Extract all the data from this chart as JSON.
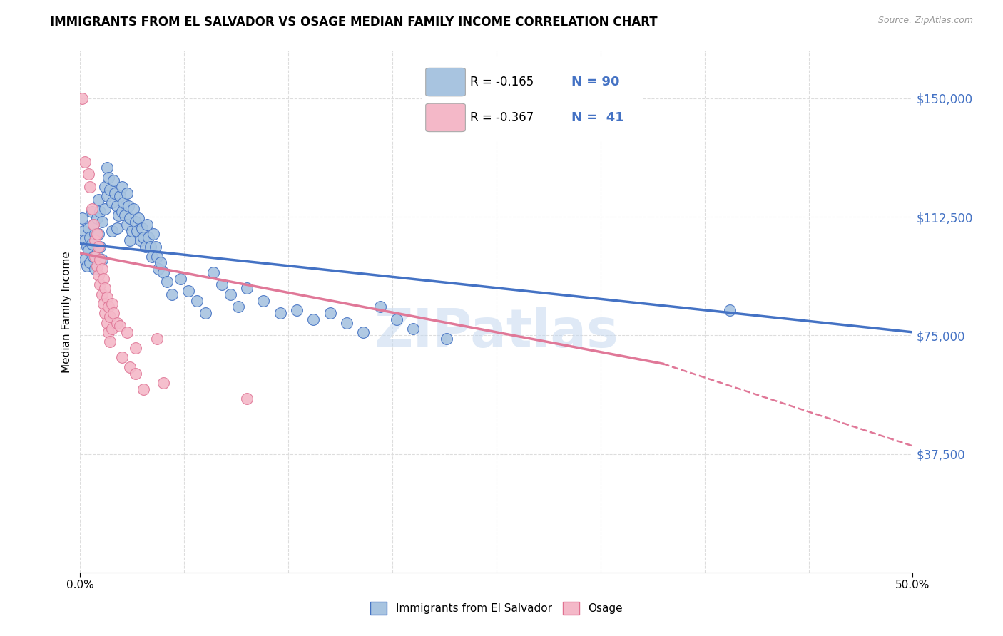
{
  "title": "IMMIGRANTS FROM EL SALVADOR VS OSAGE MEDIAN FAMILY INCOME CORRELATION CHART",
  "source": "Source: ZipAtlas.com",
  "ylabel": "Median Family Income",
  "y_tick_labels": [
    "$150,000",
    "$112,500",
    "$75,000",
    "$37,500"
  ],
  "y_tick_values": [
    150000,
    112500,
    75000,
    37500
  ],
  "x_range": [
    0.0,
    0.5
  ],
  "y_range": [
    0,
    165000
  ],
  "legend_box": {
    "R1": "-0.165",
    "N1": "90",
    "R2": "-0.367",
    "N2": "41"
  },
  "legend_bottom": [
    {
      "label": "Immigrants from El Salvador",
      "color": "#a8c4e0",
      "edge": "#4472c4"
    },
    {
      "label": "Osage",
      "color": "#f4b8c8",
      "edge": "#e07090"
    }
  ],
  "blue_scatter": [
    [
      0.001,
      112000
    ],
    [
      0.002,
      108000
    ],
    [
      0.003,
      105000
    ],
    [
      0.003,
      99000
    ],
    [
      0.004,
      103000
    ],
    [
      0.004,
      97000
    ],
    [
      0.005,
      109000
    ],
    [
      0.005,
      102000
    ],
    [
      0.006,
      106000
    ],
    [
      0.006,
      98000
    ],
    [
      0.007,
      114000
    ],
    [
      0.007,
      104000
    ],
    [
      0.008,
      110000
    ],
    [
      0.008,
      100000
    ],
    [
      0.009,
      107000
    ],
    [
      0.009,
      96000
    ],
    [
      0.01,
      112000
    ],
    [
      0.01,
      101000
    ],
    [
      0.011,
      118000
    ],
    [
      0.011,
      107000
    ],
    [
      0.012,
      114000
    ],
    [
      0.012,
      103000
    ],
    [
      0.013,
      111000
    ],
    [
      0.013,
      99000
    ],
    [
      0.015,
      122000
    ],
    [
      0.015,
      115000
    ],
    [
      0.016,
      128000
    ],
    [
      0.016,
      119000
    ],
    [
      0.017,
      125000
    ],
    [
      0.018,
      121000
    ],
    [
      0.019,
      117000
    ],
    [
      0.019,
      108000
    ],
    [
      0.02,
      124000
    ],
    [
      0.021,
      120000
    ],
    [
      0.022,
      116000
    ],
    [
      0.022,
      109000
    ],
    [
      0.023,
      113000
    ],
    [
      0.024,
      119000
    ],
    [
      0.025,
      122000
    ],
    [
      0.025,
      114000
    ],
    [
      0.026,
      117000
    ],
    [
      0.027,
      113000
    ],
    [
      0.028,
      120000
    ],
    [
      0.028,
      110000
    ],
    [
      0.029,
      116000
    ],
    [
      0.03,
      112000
    ],
    [
      0.03,
      105000
    ],
    [
      0.031,
      108000
    ],
    [
      0.032,
      115000
    ],
    [
      0.033,
      111000
    ],
    [
      0.034,
      108000
    ],
    [
      0.035,
      112000
    ],
    [
      0.036,
      105000
    ],
    [
      0.037,
      109000
    ],
    [
      0.038,
      106000
    ],
    [
      0.039,
      103000
    ],
    [
      0.04,
      110000
    ],
    [
      0.041,
      106000
    ],
    [
      0.042,
      103000
    ],
    [
      0.043,
      100000
    ],
    [
      0.044,
      107000
    ],
    [
      0.045,
      103000
    ],
    [
      0.046,
      100000
    ],
    [
      0.047,
      96000
    ],
    [
      0.048,
      98000
    ],
    [
      0.05,
      95000
    ],
    [
      0.052,
      92000
    ],
    [
      0.055,
      88000
    ],
    [
      0.06,
      93000
    ],
    [
      0.065,
      89000
    ],
    [
      0.07,
      86000
    ],
    [
      0.075,
      82000
    ],
    [
      0.08,
      95000
    ],
    [
      0.085,
      91000
    ],
    [
      0.09,
      88000
    ],
    [
      0.095,
      84000
    ],
    [
      0.1,
      90000
    ],
    [
      0.11,
      86000
    ],
    [
      0.12,
      82000
    ],
    [
      0.13,
      83000
    ],
    [
      0.14,
      80000
    ],
    [
      0.15,
      82000
    ],
    [
      0.16,
      79000
    ],
    [
      0.17,
      76000
    ],
    [
      0.18,
      84000
    ],
    [
      0.19,
      80000
    ],
    [
      0.2,
      77000
    ],
    [
      0.22,
      74000
    ],
    [
      0.39,
      83000
    ]
  ],
  "pink_scatter": [
    [
      0.001,
      150000
    ],
    [
      0.003,
      130000
    ],
    [
      0.005,
      126000
    ],
    [
      0.006,
      122000
    ],
    [
      0.007,
      115000
    ],
    [
      0.008,
      110000
    ],
    [
      0.009,
      105000
    ],
    [
      0.009,
      100000
    ],
    [
      0.01,
      107000
    ],
    [
      0.01,
      97000
    ],
    [
      0.011,
      103000
    ],
    [
      0.011,
      94000
    ],
    [
      0.012,
      99000
    ],
    [
      0.012,
      91000
    ],
    [
      0.013,
      96000
    ],
    [
      0.013,
      88000
    ],
    [
      0.014,
      93000
    ],
    [
      0.014,
      85000
    ],
    [
      0.015,
      90000
    ],
    [
      0.015,
      82000
    ],
    [
      0.016,
      87000
    ],
    [
      0.016,
      79000
    ],
    [
      0.017,
      84000
    ],
    [
      0.017,
      76000
    ],
    [
      0.018,
      81000
    ],
    [
      0.018,
      73000
    ],
    [
      0.019,
      85000
    ],
    [
      0.019,
      77000
    ],
    [
      0.02,
      82000
    ],
    [
      0.022,
      79000
    ],
    [
      0.024,
      78000
    ],
    [
      0.025,
      68000
    ],
    [
      0.028,
      76000
    ],
    [
      0.03,
      65000
    ],
    [
      0.033,
      71000
    ],
    [
      0.033,
      63000
    ],
    [
      0.038,
      58000
    ],
    [
      0.046,
      74000
    ],
    [
      0.05,
      60000
    ],
    [
      0.1,
      55000
    ]
  ],
  "blue_line": {
    "x0": 0.0,
    "y0": 104000,
    "x1": 0.5,
    "y1": 76000
  },
  "pink_line_solid": {
    "x0": 0.0,
    "y0": 101000,
    "x1": 0.35,
    "y1": 66000
  },
  "pink_line_dashed": {
    "x0": 0.35,
    "y0": 66000,
    "x1": 0.5,
    "y1": 40000
  },
  "watermark": "ZIPatlas",
  "blue_color": "#4472c4",
  "pink_color": "#e07898",
  "blue_scatter_color": "#a8c4e0",
  "pink_scatter_color": "#f4b8c8",
  "grid_color": "#dddddd",
  "right_label_color": "#4472c4",
  "x_tick_positions": [
    0.0,
    0.5
  ],
  "x_tick_minor": [
    0.0625,
    0.125,
    0.1875,
    0.25,
    0.3125,
    0.375,
    0.4375
  ]
}
